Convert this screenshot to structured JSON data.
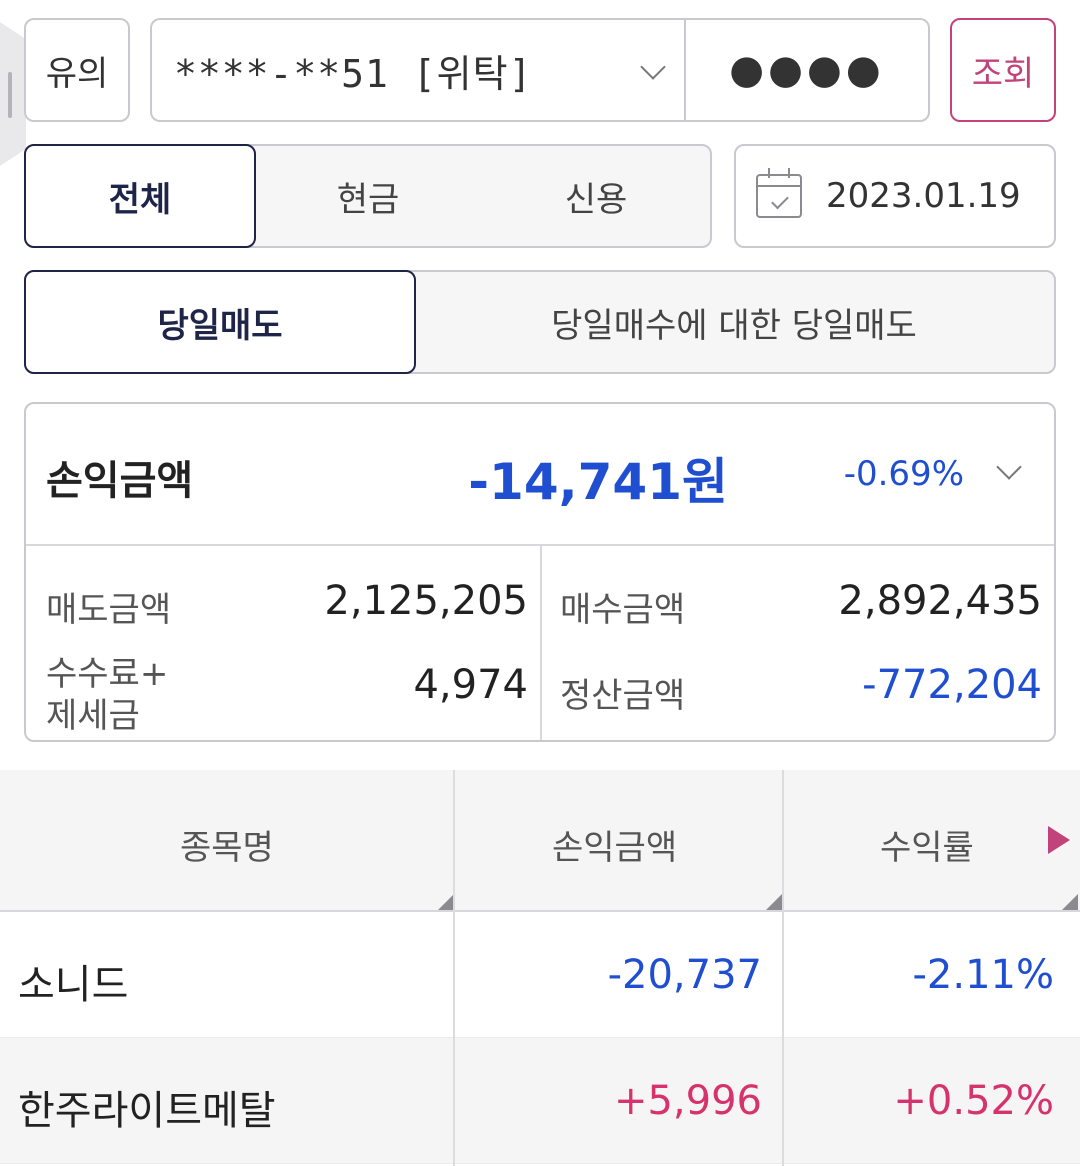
{
  "header": {
    "warn_label": "유의",
    "account": "****-**51 [위탁]",
    "password_mask": "●●●●",
    "query_label": "조회"
  },
  "filters": {
    "type_tabs": [
      {
        "label": "전체",
        "active": true
      },
      {
        "label": "현금",
        "active": false
      },
      {
        "label": "신용",
        "active": false
      }
    ],
    "date": "2023.01.19",
    "mode_tabs": [
      {
        "label": "당일매도",
        "active": true
      },
      {
        "label": "당일매수에 대한 당일매도",
        "active": false
      }
    ]
  },
  "summary": {
    "pl_label": "손익금액",
    "pl_value": "-14,741원",
    "pl_pct": "-0.69%",
    "sell_label": "매도금액",
    "sell_value": "2,125,205",
    "buy_label": "매수금액",
    "buy_value": "2,892,435",
    "fee_label_1": "수수료+",
    "fee_label_2": "제세금",
    "fee_value": "4,974",
    "settle_label": "정산금액",
    "settle_value": "-772,204"
  },
  "table": {
    "headers": [
      "종목명",
      "손익금액",
      "수익률"
    ],
    "rows": [
      {
        "name": "소니드",
        "pl": "-20,737",
        "rate": "-2.11%",
        "sign": "neg"
      },
      {
        "name": "한주라이트메탈",
        "pl": "+5,996",
        "rate": "+0.52%",
        "sign": "pos"
      }
    ]
  },
  "colors": {
    "navy": "#1e2548",
    "accent_pink": "#c2437a",
    "negative_blue": "#1f4fd0",
    "positive_pink": "#d6336c"
  }
}
